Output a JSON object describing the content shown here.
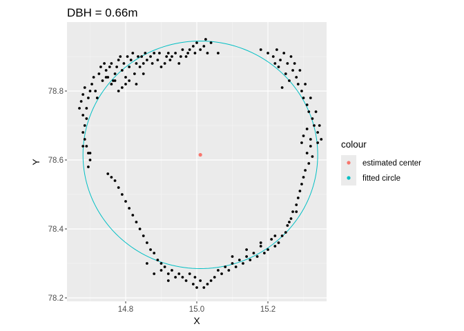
{
  "chart_data": {
    "type": "scatter",
    "title": "DBH = 0.66m",
    "xlabel": "X",
    "ylabel": "Y",
    "xlim": [
      14.635,
      15.365
    ],
    "ylim": [
      78.19,
      79.0
    ],
    "xticks": [
      14.8,
      15.0,
      15.2
    ],
    "xtick_labels": [
      "14.8",
      "15.0",
      "15.2"
    ],
    "yticks": [
      78.2,
      78.4,
      78.6,
      78.8
    ],
    "ytick_labels": [
      "78.2",
      "78.4",
      "78.6",
      "78.8"
    ],
    "grid": true,
    "legend": {
      "title": "colour",
      "position": "right",
      "entries": [
        {
          "label": "estimated center",
          "color": "#F8766D"
        },
        {
          "label": "fitted circle",
          "color": "#00BFC4"
        }
      ]
    },
    "estimated_center": {
      "x": 15.01,
      "y": 78.615,
      "color": "#F8766D"
    },
    "fitted_circle": {
      "cx": 15.01,
      "cy": 78.615,
      "r": 0.33,
      "color": "#00BFC4"
    },
    "points": [
      [
        14.67,
        78.75
      ],
      [
        14.675,
        78.77
      ],
      [
        14.68,
        78.79
      ],
      [
        14.685,
        78.81
      ],
      [
        14.68,
        78.73
      ],
      [
        14.69,
        78.75
      ],
      [
        14.695,
        78.78
      ],
      [
        14.7,
        78.8
      ],
      [
        14.705,
        78.82
      ],
      [
        14.71,
        78.84
      ],
      [
        14.715,
        78.8
      ],
      [
        14.72,
        78.78
      ],
      [
        14.725,
        78.85
      ],
      [
        14.73,
        78.87
      ],
      [
        14.735,
        78.83
      ],
      [
        14.74,
        78.88
      ],
      [
        14.745,
        78.86
      ],
      [
        14.75,
        78.84
      ],
      [
        14.755,
        78.87
      ],
      [
        14.76,
        78.88
      ],
      [
        14.765,
        78.83
      ],
      [
        14.77,
        78.85
      ],
      [
        14.775,
        78.87
      ],
      [
        14.78,
        78.89
      ],
      [
        14.785,
        78.9
      ],
      [
        14.79,
        78.86
      ],
      [
        14.795,
        78.88
      ],
      [
        14.8,
        78.84
      ],
      [
        14.805,
        78.9
      ],
      [
        14.81,
        78.87
      ],
      [
        14.815,
        78.89
      ],
      [
        14.82,
        78.91
      ],
      [
        14.825,
        78.85
      ],
      [
        14.83,
        78.88
      ],
      [
        14.835,
        78.9
      ],
      [
        14.84,
        78.87
      ],
      [
        14.845,
        78.9
      ],
      [
        14.85,
        78.88
      ],
      [
        14.855,
        78.91
      ],
      [
        14.86,
        78.89
      ],
      [
        14.87,
        78.9
      ],
      [
        14.875,
        78.88
      ],
      [
        14.88,
        78.91
      ],
      [
        14.89,
        78.89
      ],
      [
        14.895,
        78.91
      ],
      [
        14.9,
        78.87
      ],
      [
        14.91,
        78.88
      ],
      [
        14.915,
        78.9
      ],
      [
        14.92,
        78.91
      ],
      [
        14.925,
        78.89
      ],
      [
        14.93,
        78.9
      ],
      [
        14.94,
        78.91
      ],
      [
        14.95,
        78.88
      ],
      [
        14.955,
        78.9
      ],
      [
        14.96,
        78.92
      ],
      [
        14.97,
        78.9
      ],
      [
        14.975,
        78.91
      ],
      [
        14.98,
        78.92
      ],
      [
        14.99,
        78.93
      ],
      [
        14.995,
        78.91
      ],
      [
        15.0,
        78.94
      ],
      [
        15.01,
        78.92
      ],
      [
        15.02,
        78.93
      ],
      [
        15.025,
        78.95
      ],
      [
        15.03,
        78.91
      ],
      [
        15.04,
        78.94
      ],
      [
        15.06,
        78.91
      ],
      [
        14.8,
        78.82
      ],
      [
        14.78,
        78.8
      ],
      [
        14.77,
        78.83
      ],
      [
        14.79,
        78.81
      ],
      [
        14.81,
        78.83
      ],
      [
        14.83,
        78.82
      ],
      [
        14.85,
        78.85
      ],
      [
        14.76,
        78.82
      ],
      [
        14.745,
        78.84
      ],
      [
        15.18,
        78.92
      ],
      [
        15.2,
        78.91
      ],
      [
        15.215,
        78.9
      ],
      [
        15.225,
        78.92
      ],
      [
        15.235,
        78.89
      ],
      [
        15.245,
        78.91
      ],
      [
        15.255,
        78.88
      ],
      [
        15.265,
        78.9
      ],
      [
        15.27,
        78.86
      ],
      [
        15.275,
        78.88
      ],
      [
        15.28,
        78.84
      ],
      [
        15.285,
        78.82
      ],
      [
        15.29,
        78.86
      ],
      [
        15.295,
        78.8
      ],
      [
        15.3,
        78.78
      ],
      [
        15.305,
        78.82
      ],
      [
        15.31,
        78.76
      ],
      [
        15.315,
        78.74
      ],
      [
        15.32,
        78.78
      ],
      [
        15.325,
        78.72
      ],
      [
        15.33,
        78.7
      ],
      [
        15.335,
        78.74
      ],
      [
        15.34,
        78.68
      ],
      [
        15.345,
        78.7
      ],
      [
        15.35,
        78.66
      ],
      [
        15.32,
        78.64
      ],
      [
        15.325,
        78.61
      ],
      [
        15.315,
        78.59
      ],
      [
        15.31,
        78.62
      ],
      [
        15.305,
        78.57
      ],
      [
        15.3,
        78.55
      ],
      [
        15.295,
        78.53
      ],
      [
        15.29,
        78.51
      ],
      [
        15.285,
        78.49
      ],
      [
        15.28,
        78.47
      ],
      [
        15.27,
        78.45
      ],
      [
        15.265,
        78.43
      ],
      [
        15.255,
        78.41
      ],
      [
        15.25,
        78.39
      ],
      [
        15.24,
        78.38
      ],
      [
        15.23,
        78.36
      ],
      [
        15.22,
        78.35
      ],
      [
        15.21,
        78.37
      ],
      [
        15.2,
        78.34
      ],
      [
        15.19,
        78.33
      ],
      [
        15.18,
        78.35
      ],
      [
        15.17,
        78.32
      ],
      [
        15.16,
        78.33
      ],
      [
        15.15,
        78.31
      ],
      [
        15.14,
        78.32
      ],
      [
        15.13,
        78.3
      ],
      [
        15.12,
        78.31
      ],
      [
        15.11,
        78.29
      ],
      [
        15.1,
        78.3
      ],
      [
        15.09,
        78.28
      ],
      [
        15.08,
        78.29
      ],
      [
        15.07,
        78.27
      ],
      [
        15.06,
        78.28
      ],
      [
        15.05,
        78.26
      ],
      [
        15.04,
        78.25
      ],
      [
        15.03,
        78.24
      ],
      [
        15.02,
        78.23
      ],
      [
        15.01,
        78.25
      ],
      [
        15.0,
        78.23
      ],
      [
        14.995,
        78.26
      ],
      [
        14.99,
        78.24
      ],
      [
        14.98,
        78.27
      ],
      [
        14.97,
        78.25
      ],
      [
        14.96,
        78.26
      ],
      [
        14.95,
        78.27
      ],
      [
        14.94,
        78.26
      ],
      [
        14.93,
        78.28
      ],
      [
        14.92,
        78.27
      ],
      [
        14.91,
        78.29
      ],
      [
        14.9,
        78.3
      ],
      [
        14.89,
        78.31
      ],
      [
        14.88,
        78.33
      ],
      [
        14.87,
        78.34
      ],
      [
        14.86,
        78.36
      ],
      [
        14.85,
        78.38
      ],
      [
        14.84,
        78.4
      ],
      [
        14.83,
        78.42
      ],
      [
        14.82,
        78.44
      ],
      [
        14.81,
        78.46
      ],
      [
        14.8,
        78.48
      ],
      [
        14.79,
        78.5
      ],
      [
        14.78,
        78.52
      ],
      [
        14.77,
        78.54
      ],
      [
        14.76,
        78.55
      ],
      [
        14.75,
        78.56
      ],
      [
        14.7,
        78.6
      ],
      [
        14.695,
        78.62
      ],
      [
        14.69,
        78.64
      ],
      [
        14.685,
        78.66
      ],
      [
        14.68,
        78.68
      ],
      [
        14.685,
        78.7
      ],
      [
        14.69,
        78.72
      ],
      [
        14.695,
        78.58
      ],
      [
        14.7,
        78.62
      ],
      [
        14.68,
        78.64
      ],
      [
        15.24,
        78.81
      ],
      [
        15.26,
        78.83
      ],
      [
        15.25,
        78.85
      ],
      [
        15.23,
        78.87
      ],
      [
        15.22,
        78.88
      ],
      [
        15.31,
        78.69
      ],
      [
        15.3,
        78.67
      ],
      [
        15.295,
        78.65
      ],
      [
        15.32,
        78.66
      ],
      [
        15.34,
        78.65
      ],
      [
        14.86,
        78.3
      ],
      [
        14.9,
        78.28
      ],
      [
        14.92,
        78.25
      ],
      [
        14.88,
        78.27
      ],
      [
        15.1,
        78.32
      ],
      [
        15.14,
        78.34
      ],
      [
        15.18,
        78.36
      ],
      [
        15.22,
        78.38
      ],
      [
        15.26,
        78.42
      ],
      [
        15.28,
        78.45
      ]
    ]
  }
}
